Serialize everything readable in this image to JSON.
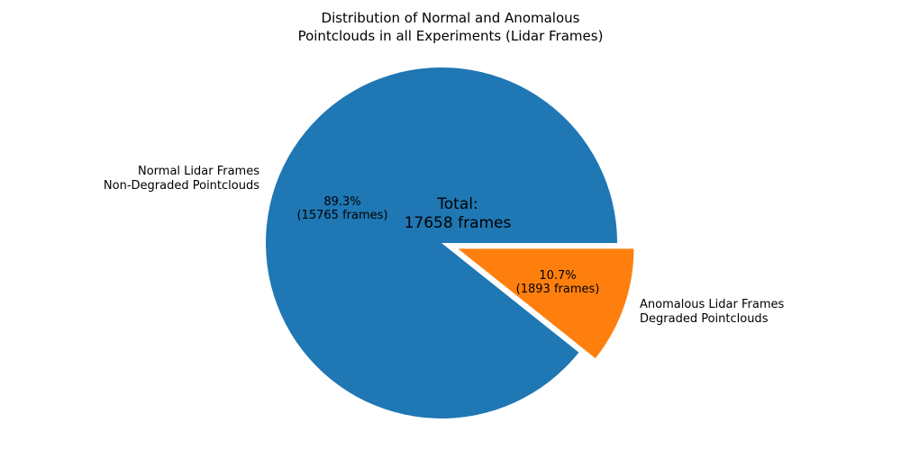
{
  "chart_data": {
    "type": "pie",
    "title": "Distribution of Normal and Anomalous\nPointclouds in all Experiments (Lidar Frames)",
    "total": 17658,
    "center_annotation": "Total:\n17658 frames",
    "start_angle": 0,
    "counterclock": true,
    "legend": "none",
    "slices": [
      {
        "name": "normal",
        "label": "Normal Lidar Frames\nNon-Degraded Pointclouds",
        "value": 15765,
        "percent": 89.3,
        "pct_label": "89.3%\n(15765 frames)",
        "color": "#1f77b4",
        "explode": 0
      },
      {
        "name": "anomalous",
        "label": "Anomalous Lidar Frames\nDegraded Pointclouds",
        "value": 1893,
        "percent": 10.7,
        "pct_label": "10.7%\n(1893 frames)",
        "color": "#ff7f0e",
        "explode": 0.1
      }
    ]
  }
}
